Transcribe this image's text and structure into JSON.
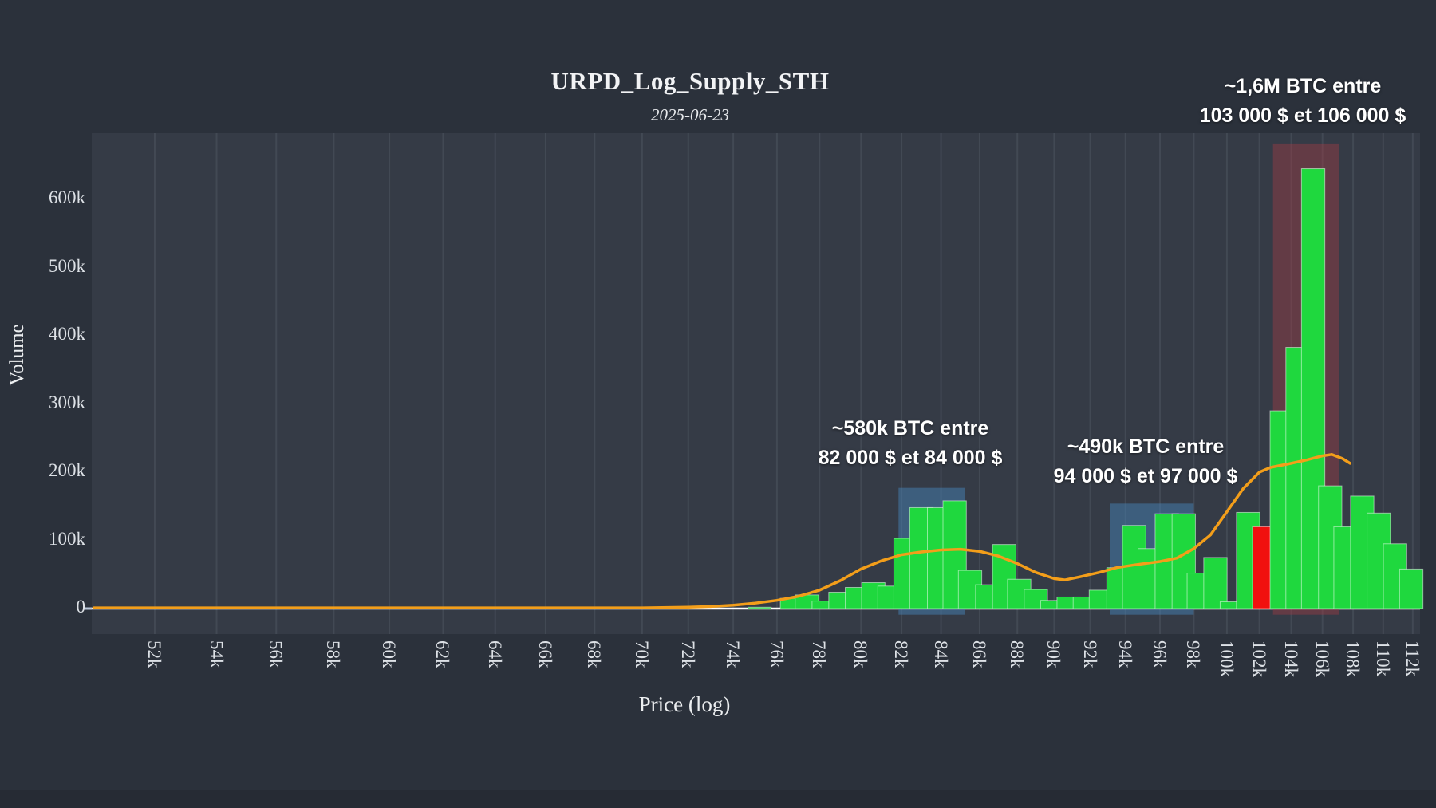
{
  "header": {
    "title": "URPD_Log_Supply_STH",
    "subtitle": "2025-06-23"
  },
  "axes": {
    "x_label": "Price (log)",
    "y_label": "Volume",
    "x_scale": "log",
    "x_tick_values_k": [
      52,
      54,
      56,
      58,
      60,
      62,
      64,
      66,
      68,
      70,
      72,
      74,
      76,
      78,
      80,
      82,
      84,
      86,
      88,
      90,
      92,
      94,
      96,
      98,
      100,
      102,
      104,
      106,
      108,
      110,
      112
    ],
    "x_tick_suffix": "k",
    "y_tick_values_k": [
      0,
      100,
      200,
      300,
      400,
      500,
      600
    ],
    "y_tick_suffix": "k"
  },
  "annotations": [
    {
      "id": "zone-82k-84k",
      "line1": "~580k BTC entre",
      "line2": "82 000 $ et 84 000 $"
    },
    {
      "id": "zone-94k-97k",
      "line1": "~490k BTC entre",
      "line2": "94 000 $ et 97 000 $"
    },
    {
      "id": "zone-103k-106k",
      "line1": "~1,6M BTC entre",
      "line2": "103 000 $ et 106 000 $"
    }
  ],
  "colors": {
    "background": "#2b313b",
    "plot_background": "#353b46",
    "gridline": "#424954",
    "bar_green": "#1fd83e",
    "bar_red": "#f1100f",
    "bar_outline": "rgba(255,255,255,0.5)",
    "line_orange": "#f39e1a",
    "zone_blue": "rgba(70,130,180,0.5)",
    "zone_dark_red": "rgba(165,60,70,0.42)",
    "zero_line": "#ffffff",
    "text": "#eceef0"
  },
  "chart_data": {
    "type": "bar",
    "title": "URPD_Log_Supply_STH",
    "subtitle": "2025-06-23",
    "xlabel": "Price (log)",
    "ylabel": "Volume",
    "x_scale": "log",
    "x_range_k": [
      50.04,
      112.5
    ],
    "y_range_btc": [
      0,
      697000
    ],
    "grid": "vertical-only",
    "legend": "none",
    "bars_units": "price in k$, volume in k BTC",
    "bars": [
      [
        75.2,
        2
      ],
      [
        76.7,
        15
      ],
      [
        77.4,
        20
      ],
      [
        78.2,
        11
      ],
      [
        79.0,
        24
      ],
      [
        79.8,
        31
      ],
      [
        80.6,
        38
      ],
      [
        81.4,
        33
      ],
      [
        82.2,
        103
      ],
      [
        83.0,
        148
      ],
      [
        83.9,
        148
      ],
      [
        84.7,
        158
      ],
      [
        85.5,
        56
      ],
      [
        86.4,
        35
      ],
      [
        87.3,
        94
      ],
      [
        88.1,
        43
      ],
      [
        89.0,
        28
      ],
      [
        89.9,
        12
      ],
      [
        90.8,
        17
      ],
      [
        91.7,
        17
      ],
      [
        92.6,
        27
      ],
      [
        93.6,
        60
      ],
      [
        94.5,
        122
      ],
      [
        95.4,
        88
      ],
      [
        96.4,
        139
      ],
      [
        97.4,
        139
      ],
      [
        98.3,
        52
      ],
      [
        99.3,
        75
      ],
      [
        100.3,
        10
      ],
      [
        101.3,
        141
      ],
      [
        102.3,
        120
      ],
      [
        103.4,
        290
      ],
      [
        104.4,
        383
      ],
      [
        105.4,
        645
      ],
      [
        106.5,
        180
      ],
      [
        107.5,
        120
      ],
      [
        108.6,
        165
      ],
      [
        109.7,
        140
      ],
      [
        110.8,
        95
      ],
      [
        111.9,
        58
      ]
    ],
    "red_bar_price_k": 102.3,
    "line_series": {
      "color": "#f39e1a",
      "points_price_k_volume_k": [
        [
          50.1,
          1
        ],
        [
          55,
          1
        ],
        [
          60,
          1
        ],
        [
          65,
          1
        ],
        [
          70,
          1
        ],
        [
          72,
          2
        ],
        [
          73,
          3
        ],
        [
          74,
          5
        ],
        [
          75,
          8
        ],
        [
          76,
          12
        ],
        [
          77,
          18
        ],
        [
          78,
          27
        ],
        [
          79,
          41
        ],
        [
          80,
          58
        ],
        [
          81,
          70
        ],
        [
          82,
          79
        ],
        [
          83,
          83
        ],
        [
          84,
          86
        ],
        [
          85,
          87
        ],
        [
          86,
          84
        ],
        [
          87,
          77
        ],
        [
          88,
          66
        ],
        [
          89,
          53
        ],
        [
          90,
          44
        ],
        [
          90.6,
          42
        ],
        [
          91.5,
          47
        ],
        [
          92.5,
          53
        ],
        [
          93.5,
          60
        ],
        [
          94.5,
          64
        ],
        [
          96,
          69
        ],
        [
          97,
          74
        ],
        [
          98,
          88
        ],
        [
          99,
          108
        ],
        [
          100,
          142
        ],
        [
          101,
          176
        ],
        [
          102,
          200
        ],
        [
          102.7,
          207
        ],
        [
          104,
          213
        ],
        [
          105,
          218
        ],
        [
          106,
          224
        ],
        [
          106.6,
          226
        ],
        [
          107.3,
          220
        ],
        [
          107.8,
          213
        ]
      ]
    },
    "highlight_zones": [
      {
        "x0_k": 81.85,
        "x1_k": 85.25,
        "top_volume_k": 177,
        "bottom_volume_k": -9,
        "color_key": "zone_blue"
      },
      {
        "x0_k": 93.1,
        "x1_k": 98.0,
        "top_volume_k": 154,
        "bottom_volume_k": -9,
        "color_key": "zone_blue"
      },
      {
        "x0_k": 102.85,
        "x1_k": 107.1,
        "top_volume_k": 682,
        "bottom_volume_k": -9,
        "color_key": "zone_dark_red"
      }
    ]
  }
}
